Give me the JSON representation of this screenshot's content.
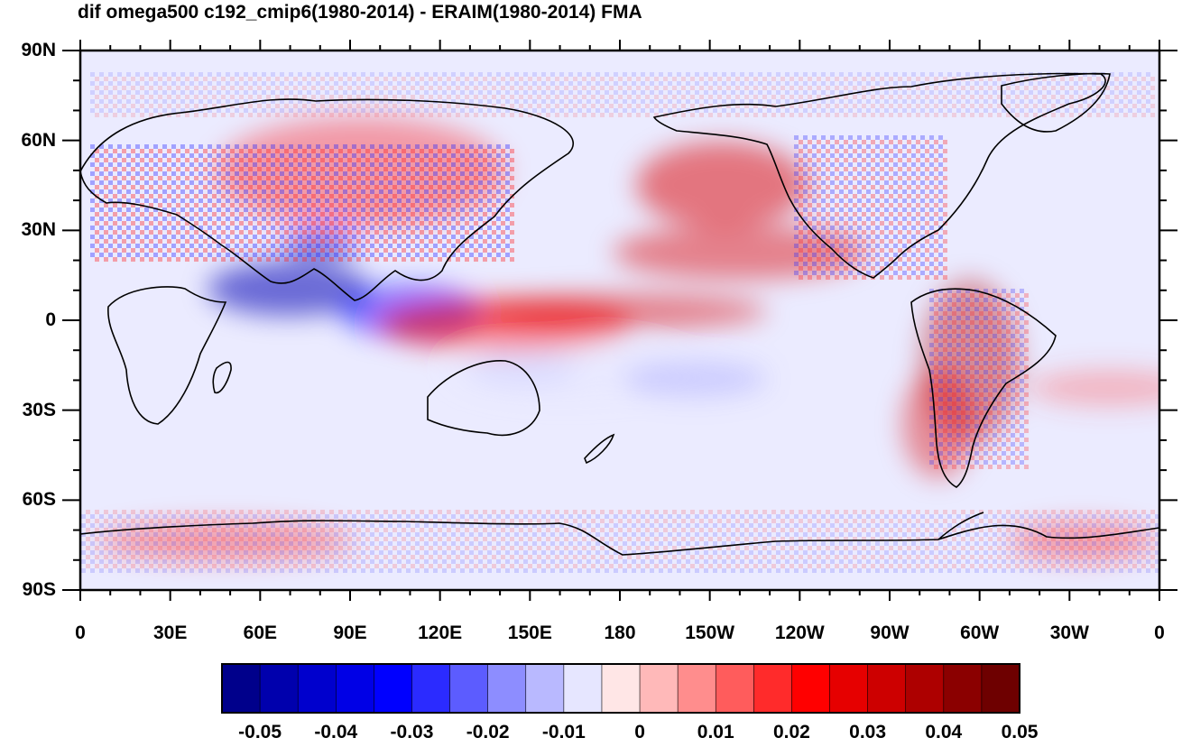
{
  "title": "dif omega500 c192_cmip6(1980-2014) - ERAIM(1980-2014) FMA",
  "map": {
    "projection": "cylindrical-equidistant",
    "lon_range": [
      0,
      360
    ],
    "lat_range": [
      -90,
      90
    ],
    "lat_tick_labels": [
      "90N",
      "60N",
      "30N",
      "0",
      "30S",
      "60S",
      "90S"
    ],
    "lon_tick_labels": [
      "0",
      "30E",
      "60E",
      "90E",
      "120E",
      "150E",
      "180",
      "150W",
      "120W",
      "90W",
      "60W",
      "30W",
      "0"
    ],
    "coastlines": true,
    "field": "omega500 difference",
    "field_colors": [
      "#00008e",
      "#0000b4",
      "#0000dc",
      "#0000ff",
      "#5050ff",
      "#9696ff",
      "#c8c8ff",
      "#e6e6ff",
      "#ffe6e6",
      "#ffb4b4",
      "#ff8080",
      "#ff5050",
      "#ff0000",
      "#dc0000",
      "#b40000",
      "#8e0000"
    ]
  },
  "colorbar": {
    "tick_labels": [
      "-0.05",
      "-0.04",
      "-0.03",
      "-0.02",
      "-0.01",
      "0",
      "0.01",
      "0.02",
      "0.03",
      "0.04",
      "0.05"
    ],
    "colors": [
      "#00008b",
      "#0000ad",
      "#0000cd",
      "#0000e6",
      "#0000ff",
      "#2b2bff",
      "#5c5cff",
      "#8d8dff",
      "#b9b9ff",
      "#e6e6ff",
      "#ffe6e6",
      "#ffb9b9",
      "#ff8d8d",
      "#ff5c5c",
      "#ff2b2b",
      "#ff0000",
      "#e60000",
      "#cd0000",
      "#ad0000",
      "#8b0000",
      "#6e0000"
    ]
  }
}
